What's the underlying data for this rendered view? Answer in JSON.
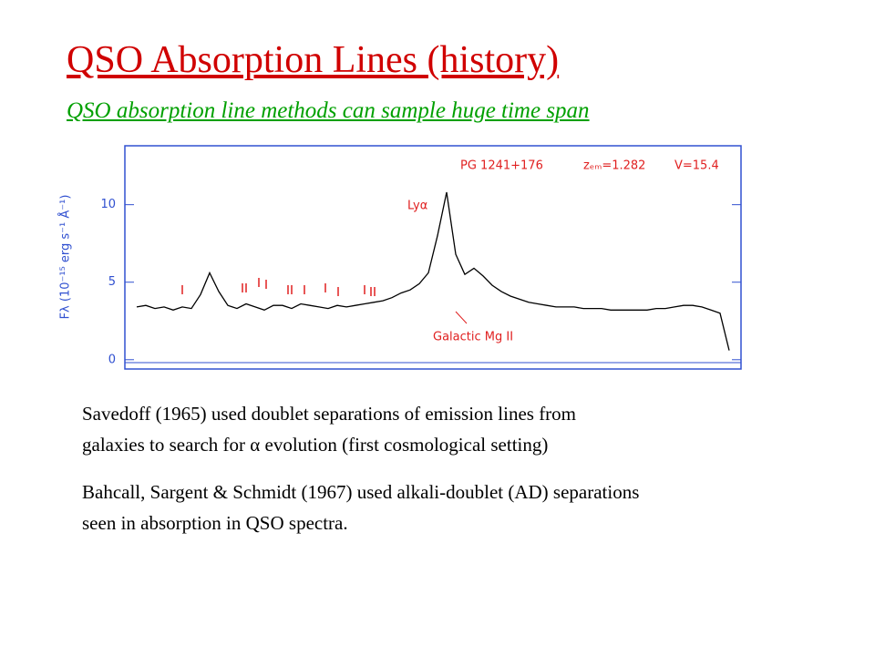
{
  "header": {
    "title": "QSO Absorption Lines (history)",
    "subtitle": "QSO absorption line methods can sample huge time span"
  },
  "chart_data": {
    "type": "line",
    "y_label": "Fλ (10⁻¹⁵ erg s⁻¹ Å⁻¹)",
    "annotations": [
      "PG 1241+176",
      "zₑₘ=1.282",
      "V=15.4",
      "Lyα",
      "Galactic Mg II"
    ],
    "ylim": [
      -0.6,
      13.8
    ],
    "yticks": [
      0,
      5,
      10
    ],
    "series": [
      {
        "color": "#000000",
        "values": [
          3.4,
          3.5,
          3.3,
          3.4,
          3.2,
          3.4,
          3.3,
          4.2,
          5.6,
          4.4,
          3.5,
          3.3,
          3.6,
          3.4,
          3.2,
          3.5,
          3.5,
          3.3,
          3.6,
          3.5,
          3.4,
          3.3,
          3.5,
          3.4,
          3.5,
          3.6,
          3.7,
          3.8,
          4.0,
          4.3,
          4.5,
          4.9,
          5.6,
          8.0,
          10.8,
          6.8,
          5.5,
          5.9,
          5.4,
          4.8,
          4.4,
          4.1,
          3.9,
          3.7,
          3.6,
          3.5,
          3.4,
          3.4,
          3.4,
          3.3,
          3.3,
          3.3,
          3.2,
          3.2,
          3.2,
          3.2,
          3.2,
          3.3,
          3.3,
          3.4,
          3.5,
          3.5,
          3.4,
          3.2,
          3.0,
          0.6
        ]
      }
    ]
  },
  "paragraphs": [
    {
      "lines": [
        "Savedoff (1965) used doublet separations of emission lines from",
        "galaxies to search for α evolution  (first cosmological setting)"
      ]
    },
    {
      "lines": [
        "Bahcall, Sargent & Schmidt (1967) used alkali-doublet (AD) separations",
        "seen in absorption in QSO spectra."
      ]
    }
  ]
}
